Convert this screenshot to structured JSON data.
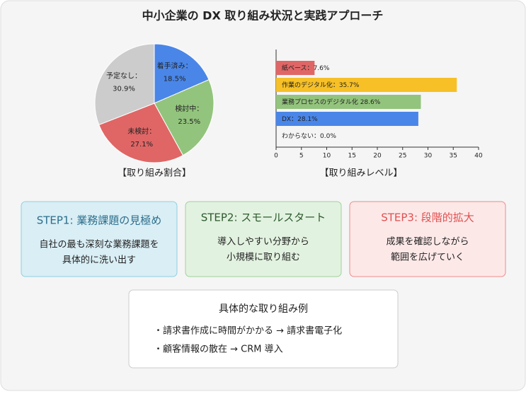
{
  "title": "中小企業の DX 取り組み状況と実践アプローチ",
  "chart_data": [
    {
      "type": "pie",
      "title": "【取り組み割合】",
      "categories": [
        "着手済み：",
        "検討中：",
        "未検討：",
        "予定なし："
      ],
      "values": [
        18.5,
        23.5,
        27.1,
        30.9
      ],
      "value_labels": [
        "18.5%",
        "23.5%",
        "27.1%",
        "30.9%"
      ],
      "colors": [
        "#4a86e8",
        "#93c47d",
        "#e06666",
        "#cccccc"
      ]
    },
    {
      "type": "bar",
      "orientation": "horizontal",
      "title": "【取り組みレベル】",
      "categories": [
        "紙ベース：",
        "作業のデジタル化：",
        "業務プロセスのデジタル化 ",
        "DX：",
        "わからない："
      ],
      "values": [
        7.6,
        35.7,
        28.6,
        28.1,
        0.0
      ],
      "value_labels": [
        "7.6%",
        "35.7%",
        "28.6%",
        "28.1%",
        "0.0%"
      ],
      "colors": [
        "#e06666",
        "#f6c026",
        "#93c47d",
        "#4a86e8",
        "#cccccc"
      ],
      "xlim": [
        0,
        40
      ],
      "xticks": [
        0,
        5,
        10,
        15,
        20,
        25,
        30,
        35,
        40
      ],
      "grid": false
    }
  ],
  "steps": [
    {
      "title": "STEP1: 業務課題の見極め",
      "lines": [
        "自社の最も深刻な業務課題を",
        "具体的に洗い出す"
      ]
    },
    {
      "title": "STEP2: スモールスタート",
      "lines": [
        "導入しやすい分野から",
        "小規模に取り組む"
      ]
    },
    {
      "title": "STEP3: 段階的拡大",
      "lines": [
        "成果を確認しながら",
        "範囲を広げていく"
      ]
    }
  ],
  "examples": {
    "title": "具体的な取り組み例",
    "items": [
      "・請求書作成に時間がかかる → 請求書電子化",
      "・顧客情報の散在 → CRM 導入"
    ]
  }
}
